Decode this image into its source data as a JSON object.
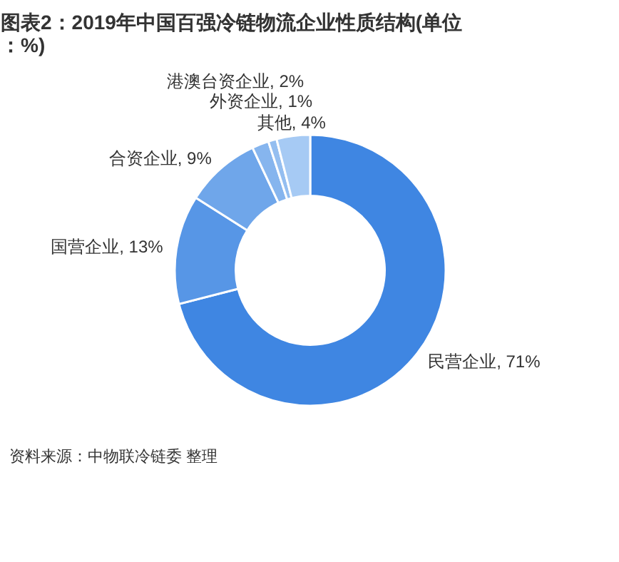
{
  "chart_data": {
    "type": "donut",
    "title": "图表2：2019年中国百强冷链物流企业性质结构(单位：%)",
    "categories": [
      "民营企业",
      "国营企业",
      "合资企业",
      "港澳台资企业",
      "外资企业",
      "其他"
    ],
    "values": [
      71,
      13,
      9,
      2,
      1,
      4
    ],
    "value_labels": [
      "71%",
      "13%",
      "9%",
      "2%",
      "1%",
      "4%"
    ],
    "colors": [
      "#3f86e2",
      "#5796e6",
      "#6fa6ea",
      "#86b5ee",
      "#94bef0",
      "#a6caf4"
    ],
    "annotations": [
      "资料来源：中物联冷链委 整理"
    ]
  }
}
